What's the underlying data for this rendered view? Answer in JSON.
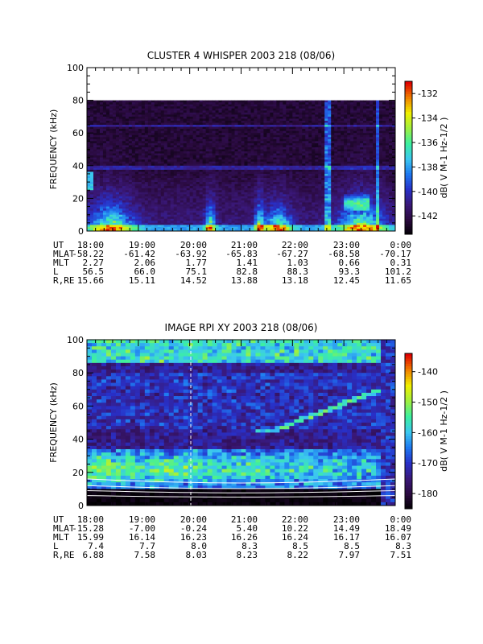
{
  "chart_data": [
    {
      "type": "heatmap",
      "title": "CLUSTER 4 WHISPER 2003 218 (08/06)",
      "ylabel": "FREQUENCY (kHz)",
      "ylim": [
        0,
        100
      ],
      "yticks": [
        "0",
        "20",
        "40",
        "60",
        "80",
        "100"
      ],
      "colorbar_label": "dB( V M-1 Hz-1/2 )",
      "colorbar_ticks": [
        "-132",
        "-134",
        "-136",
        "-138",
        "-140",
        "-142"
      ],
      "colorbar_range": [
        -143.5,
        -131
      ],
      "data_ceiling_khz": 80,
      "time_axis": {
        "row_labels": [
          "UT",
          "MLAT",
          "MLT",
          "L",
          "R,RE"
        ],
        "columns": [
          {
            "UT": "18:00",
            "MLAT": "-58.22",
            "MLT": "2.27",
            "L": "56.5",
            "R,RE": "15.66"
          },
          {
            "UT": "19:00",
            "MLAT": "-61.42",
            "MLT": "2.06",
            "L": "66.0",
            "R,RE": "15.11"
          },
          {
            "UT": "20:00",
            "MLAT": "-63.92",
            "MLT": "1.77",
            "L": "75.1",
            "R,RE": "14.52"
          },
          {
            "UT": "21:00",
            "MLAT": "-65.83",
            "MLT": "1.41",
            "L": "82.8",
            "R,RE": "13.88"
          },
          {
            "UT": "22:00",
            "MLAT": "-67.27",
            "MLT": "1.03",
            "L": "88.3",
            "R,RE": "13.18"
          },
          {
            "UT": "23:00",
            "MLAT": "-68.58",
            "MLT": "0.66",
            "L": "93.3",
            "R,RE": "12.45"
          },
          {
            "UT": "0:00",
            "MLAT": "-70.17",
            "MLT": "0.31",
            "L": "101.2",
            "R,RE": "11.65"
          }
        ]
      },
      "colormap": [
        "#000000",
        "#2a0a3e",
        "#3a1878",
        "#2830c8",
        "#1e78f0",
        "#3cc8f0",
        "#3cf0a0",
        "#a0f040",
        "#f0f000",
        "#f08000",
        "#e00000"
      ]
    },
    {
      "type": "heatmap",
      "title": "IMAGE RPI XY 2003 218 (08/06)",
      "ylabel": "FREQUENCY (kHz)",
      "ylim": [
        0,
        100
      ],
      "yticks": [
        "0",
        "20",
        "40",
        "60",
        "80",
        "100"
      ],
      "colorbar_label": "dB( V M-1 Hz-1/2 )",
      "colorbar_ticks": [
        "-140",
        "-150",
        "-160",
        "-170",
        "-180"
      ],
      "colorbar_range": [
        -185,
        -134
      ],
      "time_axis": {
        "row_labels": [
          "UT",
          "MLAT",
          "MLT",
          "L",
          "R,RE"
        ],
        "columns": [
          {
            "UT": "18:00",
            "MLAT": "-15.28",
            "MLT": "15.99",
            "L": "7.4",
            "R,RE": "6.88"
          },
          {
            "UT": "19:00",
            "MLAT": "-7.00",
            "MLT": "16.14",
            "L": "7.7",
            "R,RE": "7.58"
          },
          {
            "UT": "20:00",
            "MLAT": "-0.24",
            "MLT": "16.23",
            "L": "8.0",
            "R,RE": "8.03"
          },
          {
            "UT": "21:00",
            "MLAT": "5.40",
            "MLT": "16.26",
            "L": "8.3",
            "R,RE": "8.23"
          },
          {
            "UT": "22:00",
            "MLAT": "10.22",
            "MLT": "16.24",
            "L": "8.5",
            "R,RE": "8.22"
          },
          {
            "UT": "23:00",
            "MLAT": "14.49",
            "MLT": "16.17",
            "L": "8.5",
            "R,RE": "7.97"
          },
          {
            "UT": "0:00",
            "MLAT": "18.49",
            "MLT": "16.07",
            "L": "8.3",
            "R,RE": "7.51"
          }
        ]
      },
      "colormap": [
        "#000000",
        "#2a0a3e",
        "#3a1878",
        "#2830c8",
        "#1e78f0",
        "#3cc8f0",
        "#3cf0a0",
        "#a0f040",
        "#f0f000",
        "#f08000",
        "#e00000"
      ]
    }
  ]
}
